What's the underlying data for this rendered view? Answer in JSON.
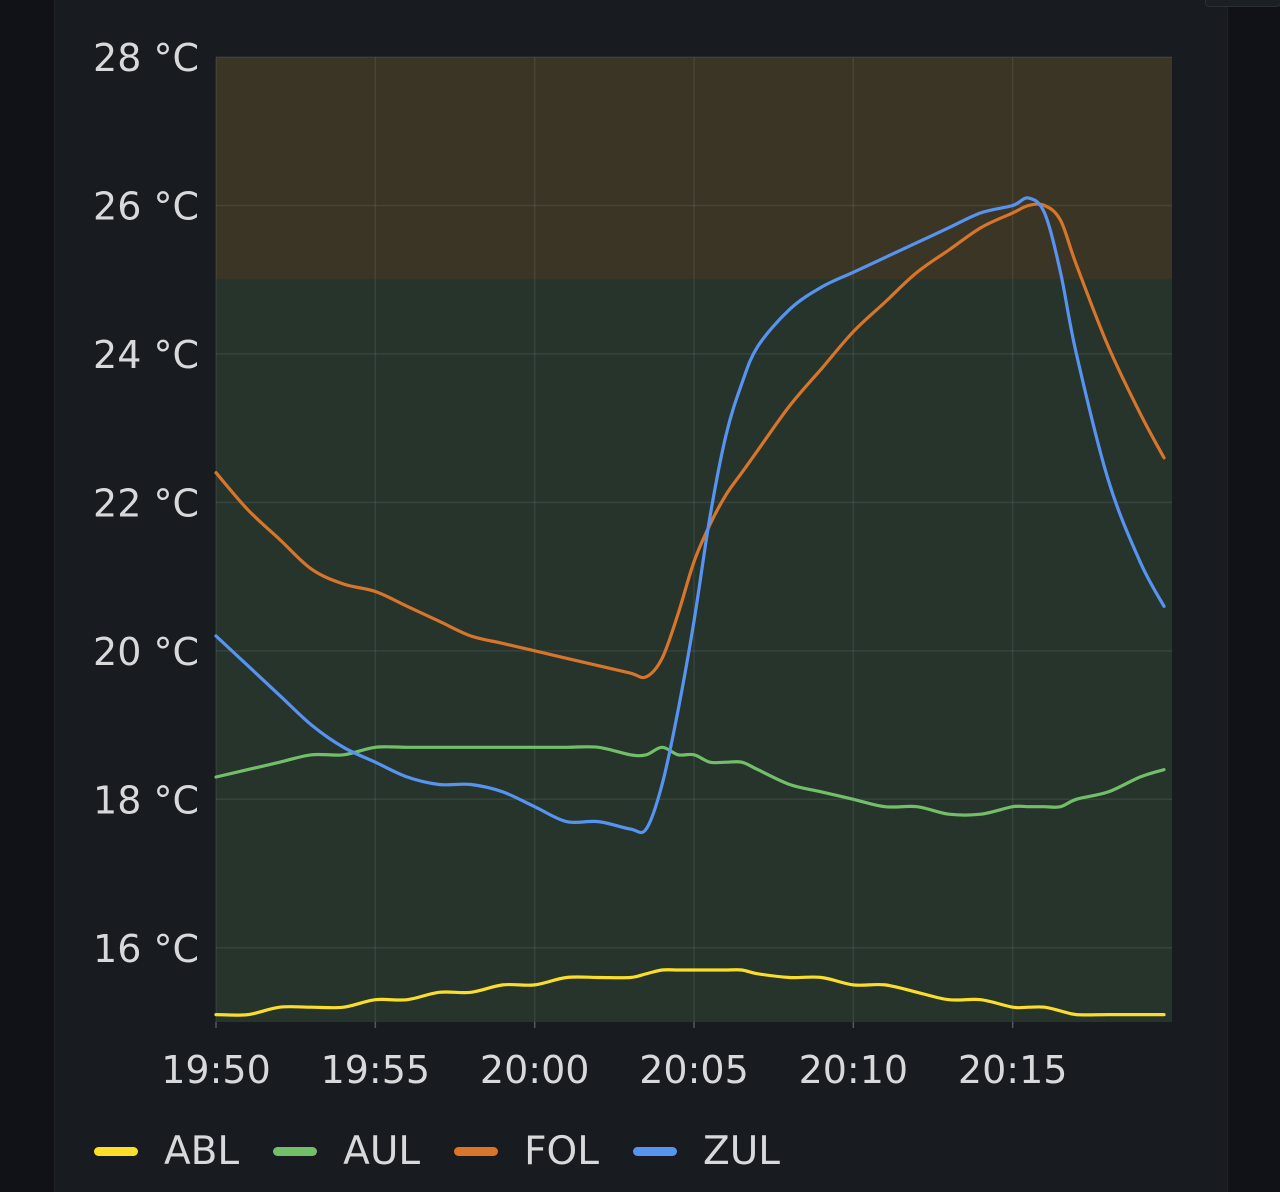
{
  "chart_data": {
    "type": "line",
    "title": "",
    "xlabel": "",
    "ylabel": "",
    "unit": "°C",
    "x_ticks": [
      "19:50",
      "19:55",
      "20:00",
      "20:05",
      "20:10",
      "20:15"
    ],
    "y_ticks": [
      "16 °C",
      "18 °C",
      "20 °C",
      "22 °C",
      "24 °C",
      "26 °C",
      "28 °C"
    ],
    "xlim_minutes_after_1950": [
      0,
      30
    ],
    "ylim": [
      15.0,
      28.0
    ],
    "grid": true,
    "legend_position": "bottom-left",
    "threshold_bands": [
      {
        "from": 15.0,
        "to": 25.0,
        "color": "#26342c"
      },
      {
        "from": 25.0,
        "to": 28.0,
        "color": "#3b3526"
      }
    ],
    "x": [
      "19:50",
      "19:51",
      "19:52",
      "19:53",
      "19:54",
      "19:55",
      "19:56",
      "19:57",
      "19:58",
      "19:59",
      "20:00",
      "20:01",
      "20:02",
      "20:03",
      "20:03:30",
      "20:04",
      "20:04:30",
      "20:05",
      "20:05:30",
      "20:06",
      "20:06:30",
      "20:07",
      "20:08",
      "20:09",
      "20:10",
      "20:11",
      "20:12",
      "20:13",
      "20:14",
      "20:15",
      "20:15:30",
      "20:16",
      "20:16:30",
      "20:17",
      "20:18",
      "20:19",
      "20:19:45"
    ],
    "series": [
      {
        "name": "ABL",
        "color": "#fade2a",
        "values": [
          15.1,
          15.1,
          15.2,
          15.2,
          15.2,
          15.3,
          15.3,
          15.4,
          15.4,
          15.5,
          15.5,
          15.6,
          15.6,
          15.6,
          15.65,
          15.7,
          15.7,
          15.7,
          15.7,
          15.7,
          15.7,
          15.65,
          15.6,
          15.6,
          15.5,
          15.5,
          15.4,
          15.3,
          15.3,
          15.2,
          15.2,
          15.2,
          15.15,
          15.1,
          15.1,
          15.1,
          15.1
        ]
      },
      {
        "name": "AUL",
        "color": "#73bf69",
        "values": [
          18.3,
          18.4,
          18.5,
          18.6,
          18.6,
          18.7,
          18.7,
          18.7,
          18.7,
          18.7,
          18.7,
          18.7,
          18.7,
          18.6,
          18.6,
          18.7,
          18.6,
          18.6,
          18.5,
          18.5,
          18.5,
          18.4,
          18.2,
          18.1,
          18.0,
          17.9,
          17.9,
          17.8,
          17.8,
          17.9,
          17.9,
          17.9,
          17.9,
          18.0,
          18.1,
          18.3,
          18.4
        ]
      },
      {
        "name": "FOL",
        "color": "#d8752b",
        "values": [
          22.4,
          21.9,
          21.5,
          21.1,
          20.9,
          20.8,
          20.6,
          20.4,
          20.2,
          20.1,
          20.0,
          19.9,
          19.8,
          19.7,
          19.65,
          19.9,
          20.5,
          21.2,
          21.7,
          22.1,
          22.4,
          22.7,
          23.3,
          23.8,
          24.3,
          24.7,
          25.1,
          25.4,
          25.7,
          25.9,
          26.0,
          26.0,
          25.8,
          25.2,
          24.1,
          23.2,
          22.6
        ]
      },
      {
        "name": "ZUL",
        "color": "#5794f2",
        "values": [
          20.2,
          19.8,
          19.4,
          19.0,
          18.7,
          18.5,
          18.3,
          18.2,
          18.2,
          18.1,
          17.9,
          17.7,
          17.7,
          17.6,
          17.6,
          18.2,
          19.2,
          20.4,
          21.8,
          22.9,
          23.6,
          24.1,
          24.6,
          24.9,
          25.1,
          25.3,
          25.5,
          25.7,
          25.9,
          26.0,
          26.1,
          25.9,
          25.1,
          24.0,
          22.3,
          21.2,
          20.6
        ]
      }
    ]
  }
}
